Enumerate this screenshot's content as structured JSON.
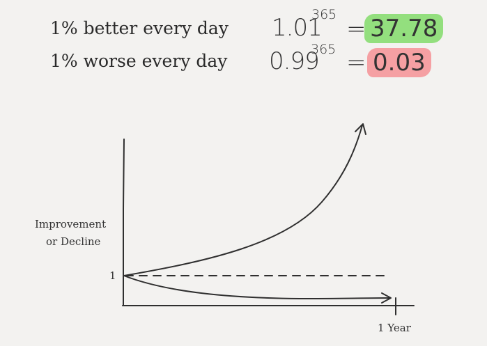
{
  "header": {
    "better": {
      "label": "1% better every day",
      "base": "1.01",
      "exponent": "365",
      "equals": "=",
      "result": "37.78",
      "highlight_color": "#93df7e"
    },
    "worse": {
      "label": "1% worse every day",
      "base": "0.99",
      "exponent": "365",
      "equals": "=",
      "result": "0.03",
      "highlight_color": "#f5a0a3"
    }
  },
  "diagram": {
    "y_axis_label_line1": "Improvement",
    "y_axis_label_line2": "or Decline",
    "y_tick_label": "1",
    "x_tick_label": "1 Year",
    "curves": [
      "improvement-curve",
      "decline-curve",
      "baseline-dashed"
    ]
  }
}
